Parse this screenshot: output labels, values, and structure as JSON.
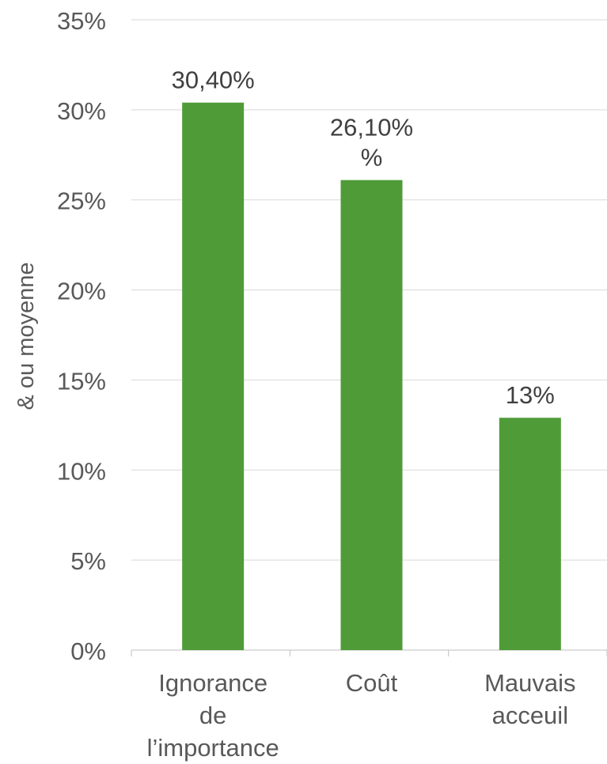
{
  "chart_data": {
    "type": "bar",
    "categories": [
      [
        "Ignorance",
        "de",
        "l’importance"
      ],
      [
        "Coût"
      ],
      [
        "Mauvais",
        "acceuil"
      ]
    ],
    "values": [
      30.4,
      26.1,
      12.9
    ],
    "data_labels": [
      [
        "30,40%"
      ],
      [
        "26,10%",
        "%"
      ],
      [
        "13%"
      ]
    ],
    "ylabel": "& ou moyenne",
    "ylim": [
      0,
      35
    ],
    "yticks": [
      "0%",
      "5%",
      "10%",
      "15%",
      "20%",
      "25%",
      "30%",
      "35%"
    ],
    "grid": true,
    "bar_color": "#4f9b38",
    "grid_color": "#d9d9d9",
    "axis_color": "#bfbfbf",
    "tick_text_color": "#595959",
    "label_text_color": "#404040"
  }
}
